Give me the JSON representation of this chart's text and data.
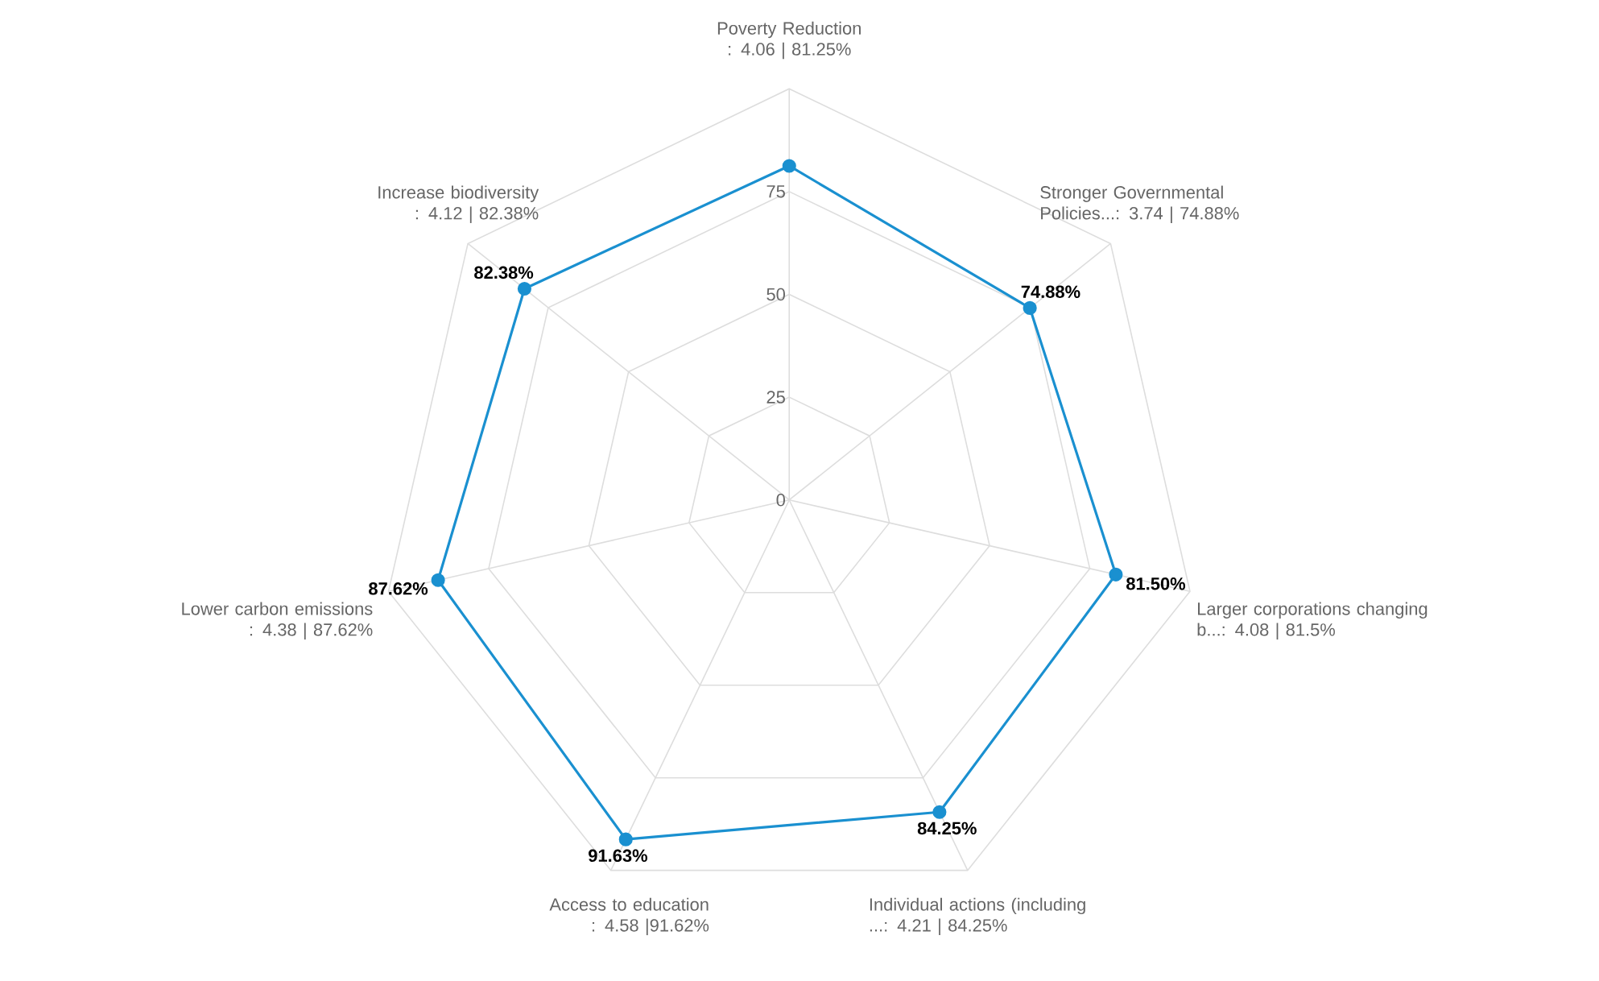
{
  "chart_data": {
    "type": "radar",
    "categories": [
      "Poverty Reduction : 4.06 | 81.25%",
      "Stronger Governmental Policies...: 3.74 | 74.88%",
      "Larger corporations changing b...: 4.08 | 81.5%",
      "Individual actions (including ...: 4.21 | 84.25%",
      "Access to education : 4.58 |91.62%",
      "Lower carbon emissions : 4.38 | 87.62%",
      "Increase biodiversity  : 4.12 | 82.38%"
    ],
    "series": [
      {
        "color": "#1a90d0",
        "values": [
          81.25,
          74.88,
          81.5,
          84.25,
          91.63,
          87.62,
          82.38
        ],
        "value_labels": [
          null,
          "74.88%",
          "81.50%",
          "84.25%",
          "91.63%",
          "87.62%",
          "82.38%"
        ]
      }
    ],
    "ylim": [
      0,
      100
    ],
    "yticks": [
      0,
      25,
      50,
      75
    ],
    "grid": true,
    "marker": "circle"
  }
}
